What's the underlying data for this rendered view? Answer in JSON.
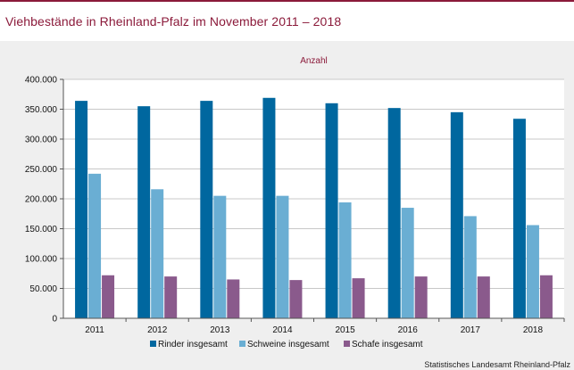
{
  "title": "Viehbestände in Rheinland-Pfalz im November 2011 – 2018",
  "source": "Statistisches Landesamt Rheinland-Pfalz",
  "chart_data": {
    "type": "bar",
    "title": "Viehbestände in Rheinland-Pfalz im November 2011 – 2018",
    "unit_label": "Anzahl",
    "categories": [
      "2011",
      "2012",
      "2013",
      "2014",
      "2015",
      "2016",
      "2017",
      "2018"
    ],
    "series": [
      {
        "name": "Rinder insgesamt",
        "color": "#00679f",
        "values": [
          364000,
          355000,
          364000,
          369000,
          360000,
          352000,
          345000,
          334000
        ]
      },
      {
        "name": "Schweine insgesamt",
        "color": "#6aaed3",
        "values": [
          242000,
          216000,
          205000,
          205000,
          194000,
          185000,
          171000,
          156000
        ]
      },
      {
        "name": "Schafe insgesamt",
        "color": "#8a5a8c",
        "values": [
          72000,
          70000,
          65000,
          64000,
          67000,
          70000,
          70000,
          72000
        ]
      }
    ],
    "yticks": [
      "0",
      "50.000",
      "100.000",
      "150.000",
      "200.000",
      "250.000",
      "300.000",
      "350.000",
      "400.000"
    ],
    "ylim": [
      0,
      400000
    ],
    "grid": true,
    "legend_position": "bottom"
  }
}
